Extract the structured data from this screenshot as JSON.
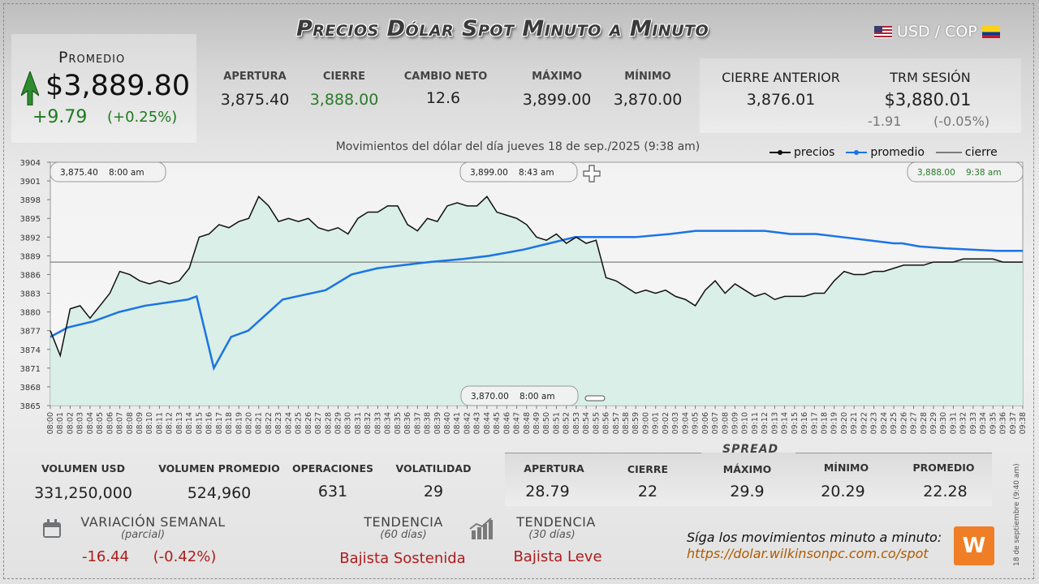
{
  "title": "Precios Dólar Spot Minuto a Minuto",
  "pair": "USD / COP",
  "promedio": {
    "label": "Promedio",
    "value": "$3,889.80",
    "change": "+9.79",
    "pct": "(+0.25%)"
  },
  "stats": [
    {
      "label": "APERTURA",
      "value": "3,875.40"
    },
    {
      "label": "CIERRE",
      "value": "3,888.00"
    },
    {
      "label": "CAMBIO NETO",
      "value": "12.6"
    },
    {
      "label": "MÁXIMO",
      "value": "3,899.00"
    },
    {
      "label": "MÍNIMO",
      "value": "3,870.00"
    }
  ],
  "cierre_anterior": {
    "label": "CIERRE ANTERIOR",
    "value": "3,876.01"
  },
  "trm": {
    "label": "TRM SESIÓN",
    "value": "$3,880.01",
    "change": "-1.91",
    "pct": "(-0.05%)"
  },
  "colors": {
    "price": "#111111",
    "average": "#1a73e8",
    "fill": "#d4ede4",
    "up": "#2a7a2a",
    "down": "#b01c1c"
  },
  "chart_data": {
    "type": "line",
    "title": "Movimientos del dólar del día jueves 18 de sep./2025 (9:38 am)",
    "legend": [
      "precios",
      "promedio",
      "cierre"
    ],
    "legend_position": "top-right",
    "ylim": [
      3865,
      3904
    ],
    "yticks": [
      3904,
      3901,
      3898,
      3895,
      3892,
      3889,
      3886,
      3883,
      3880,
      3877,
      3874,
      3871,
      3868,
      3865
    ],
    "x_start": "08:00",
    "x_end": "09:38",
    "cierre": 3888.0,
    "annotations": [
      {
        "text_value": "3,875.40",
        "text_time": "8:00 am"
      },
      {
        "text_value": "3,899.00",
        "text_time": "8:43 am"
      },
      {
        "text_value": "3,888.00",
        "text_time": "9:38 am"
      },
      {
        "text_value": "3,870.00",
        "text_time": "8:00 am"
      }
    ],
    "series": [
      {
        "name": "precios",
        "points": [
          [
            0,
            3877
          ],
          [
            1,
            3873
          ],
          [
            2,
            3880.5
          ],
          [
            3,
            3881
          ],
          [
            4,
            3879
          ],
          [
            5,
            3881
          ],
          [
            6,
            3883
          ],
          [
            7,
            3886.5
          ],
          [
            8,
            3886
          ],
          [
            9,
            3885
          ],
          [
            10,
            3884.5
          ],
          [
            11,
            3885
          ],
          [
            12,
            3884.5
          ],
          [
            13,
            3885
          ],
          [
            14,
            3887
          ],
          [
            15,
            3892
          ],
          [
            16,
            3892.5
          ],
          [
            17,
            3894
          ],
          [
            18,
            3893.5
          ],
          [
            19,
            3894.5
          ],
          [
            20,
            3895
          ],
          [
            21,
            3898.5
          ],
          [
            22,
            3897
          ],
          [
            23,
            3894.5
          ],
          [
            24,
            3895
          ],
          [
            25,
            3894.5
          ],
          [
            26,
            3895
          ],
          [
            27,
            3893.5
          ],
          [
            28,
            3893
          ],
          [
            29,
            3893.5
          ],
          [
            30,
            3892.5
          ],
          [
            31,
            3895
          ],
          [
            32,
            3896
          ],
          [
            33,
            3896
          ],
          [
            34,
            3897
          ],
          [
            35,
            3897
          ],
          [
            36,
            3894
          ],
          [
            37,
            3893
          ],
          [
            38,
            3895
          ],
          [
            39,
            3894.5
          ],
          [
            40,
            3897
          ],
          [
            41,
            3897.5
          ],
          [
            42,
            3897
          ],
          [
            43,
            3897
          ],
          [
            44,
            3898.5
          ],
          [
            45,
            3896
          ],
          [
            46,
            3895.5
          ],
          [
            47,
            3895
          ],
          [
            48,
            3894
          ],
          [
            49,
            3892
          ],
          [
            50,
            3891.5
          ],
          [
            51,
            3892.5
          ],
          [
            52,
            3891
          ],
          [
            53,
            3892
          ],
          [
            54,
            3891
          ],
          [
            55,
            3891.5
          ],
          [
            56,
            3885.5
          ],
          [
            57,
            3885
          ],
          [
            58,
            3884
          ],
          [
            59,
            3883
          ],
          [
            60,
            3883.5
          ],
          [
            61,
            3883
          ],
          [
            62,
            3883.5
          ],
          [
            63,
            3882.5
          ],
          [
            64,
            3882
          ],
          [
            65,
            3881
          ],
          [
            66,
            3883.5
          ],
          [
            67,
            3885
          ],
          [
            68,
            3883
          ],
          [
            69,
            3884.5
          ],
          [
            70,
            3883.5
          ],
          [
            71,
            3882.5
          ],
          [
            72,
            3883
          ],
          [
            73,
            3882
          ],
          [
            74,
            3882.5
          ],
          [
            75,
            3882.5
          ],
          [
            76,
            3882.5
          ],
          [
            77,
            3883
          ],
          [
            78,
            3883
          ],
          [
            79,
            3885
          ],
          [
            80,
            3886.5
          ],
          [
            81,
            3886
          ],
          [
            82,
            3886
          ],
          [
            83,
            3886.5
          ],
          [
            84,
            3886.5
          ],
          [
            85,
            3887
          ],
          [
            86,
            3887.5
          ],
          [
            87,
            3887.5
          ],
          [
            88,
            3887.5
          ],
          [
            89,
            3888
          ],
          [
            90,
            3888
          ],
          [
            91,
            3888
          ],
          [
            92,
            3888.5
          ],
          [
            93,
            3888.5
          ],
          [
            94,
            3888.5
          ],
          [
            95,
            3888.5
          ],
          [
            96,
            3888
          ],
          [
            97,
            3888
          ],
          [
            98,
            3888
          ]
        ]
      },
      {
        "name": "promedio",
        "points": [
          [
            0,
            3876
          ],
          [
            2,
            3877.5
          ],
          [
            5,
            3878.5
          ],
          [
            8,
            3880
          ],
          [
            11,
            3881
          ],
          [
            16,
            3882
          ],
          [
            17,
            3882.5
          ],
          [
            19,
            3871
          ],
          [
            21,
            3876
          ],
          [
            23,
            3877
          ],
          [
            27,
            3882
          ],
          [
            32,
            3883.5
          ],
          [
            35,
            3886
          ],
          [
            38,
            3887
          ],
          [
            41,
            3887.5
          ],
          [
            44,
            3888
          ],
          [
            48,
            3888.5
          ],
          [
            51,
            3889
          ],
          [
            55,
            3890
          ],
          [
            58,
            3891
          ],
          [
            61,
            3892
          ],
          [
            64,
            3892
          ],
          [
            68,
            3892
          ],
          [
            72,
            3892.5
          ],
          [
            75,
            3893
          ],
          [
            78,
            3893
          ],
          [
            80,
            3893
          ],
          [
            83,
            3893
          ],
          [
            86,
            3892.5
          ],
          [
            89,
            3892.5
          ],
          [
            92,
            3892
          ],
          [
            95,
            3891.5
          ],
          [
            98,
            3891
          ],
          [
            99,
            3891
          ],
          [
            101,
            3890.5
          ],
          [
            104,
            3890.2
          ],
          [
            107,
            3890
          ],
          [
            110,
            3889.8
          ],
          [
            113,
            3889.8
          ]
        ]
      }
    ]
  },
  "bottom_stats": [
    {
      "label": "VOLUMEN USD",
      "value": "331,250,000"
    },
    {
      "label": "VOLUMEN PROMEDIO",
      "value": "524,960"
    },
    {
      "label": "OPERACIONES",
      "value": "631"
    },
    {
      "label": "VOLATILIDAD",
      "value": "29"
    }
  ],
  "spread": {
    "title": "SPREAD",
    "items": [
      {
        "label": "APERTURA",
        "value": "28.79"
      },
      {
        "label": "CIERRE",
        "value": "22"
      },
      {
        "label": "MÁXIMO",
        "value": "29.9"
      },
      {
        "label": "MÍNIMO",
        "value": "20.29"
      },
      {
        "label": "PROMEDIO",
        "value": "22.28"
      }
    ]
  },
  "variacion": {
    "label": "VARIACIÓN SEMANAL",
    "sub": "(parcial)",
    "value": "-16.44",
    "pct": "(-0.42%)"
  },
  "tendencia60": {
    "label": "TENDENCIA",
    "sub": "(60 días)",
    "value": "Bajista Sostenida"
  },
  "tendencia30": {
    "label": "TENDENCIA",
    "sub": "(30 días)",
    "value": "Bajista Leve"
  },
  "follow": {
    "text": "Síga los movimientos minuto a minuto:",
    "url": "https://dolar.wilkinsonpc.com.co/spot"
  },
  "side_date": "18 de septiembre (9:40 am)",
  "icons": {
    "calendar": "calendar-icon",
    "trend": "bar-chart-icon",
    "logo": "wilkinson-logo"
  }
}
